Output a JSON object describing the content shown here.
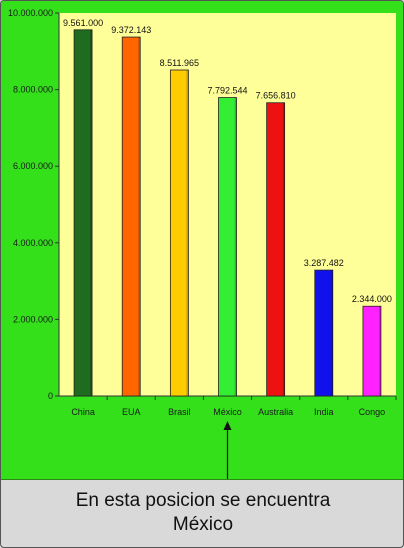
{
  "caption": {
    "line1": "En esta posicion se encuentra",
    "line2": "México"
  },
  "colors": {
    "background": "#33e01a",
    "plot_area": "#ffff99"
  },
  "chart_data": {
    "type": "bar",
    "categories": [
      "China",
      "EUA",
      "Brasil",
      "México",
      "Australia",
      "India",
      "Congo"
    ],
    "values": [
      9561000,
      9372143,
      8511965,
      7792544,
      7656810,
      3287482,
      2344000
    ],
    "value_labels": [
      "9.561.000",
      "9.372.143",
      "8.511.965",
      "7.792.544",
      "7.656.810",
      "3.287.482",
      "2.344.000"
    ],
    "bar_colors": [
      "#1f6b1f",
      "#ff6600",
      "#ffcc00",
      "#33ee33",
      "#ee1111",
      "#1111ee",
      "#ff22ff"
    ],
    "yticks": [
      0,
      2000000,
      4000000,
      6000000,
      8000000,
      10000000
    ],
    "ytick_labels": [
      "0",
      "2.000.000",
      "4.000.000",
      "6.000.000",
      "8.000.000",
      "10.000.000"
    ],
    "ylim": [
      0,
      10000000
    ],
    "title": "",
    "xlabel": "",
    "ylabel": "",
    "grid": false,
    "annotation": {
      "category": "México",
      "style": "arrow"
    }
  }
}
